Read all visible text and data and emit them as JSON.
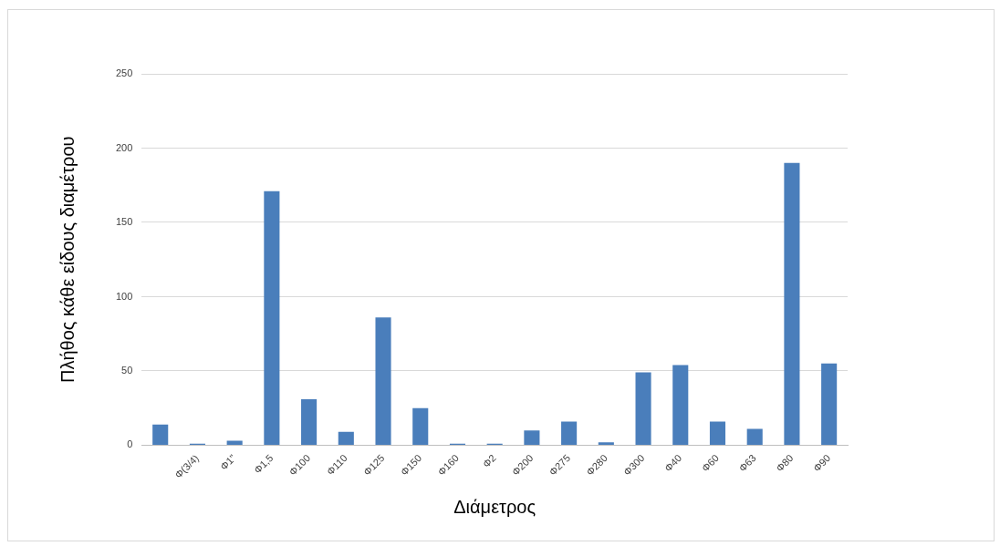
{
  "chart_data": {
    "type": "bar",
    "xlabel": "Διάμετρος",
    "ylabel": "Πλήθος κάθε είδους διαμέτρου",
    "categories": [
      null,
      "Φ(3/4)",
      "Φ1\"",
      "Φ1,5",
      "Φ100",
      "Φ110",
      "Φ125",
      "Φ150",
      "Φ160",
      "Φ2",
      "Φ200",
      "Φ275",
      "Φ280",
      "Φ300",
      "Φ40",
      "Φ60",
      "Φ63",
      "Φ80",
      "Φ90"
    ],
    "values": [
      14,
      1,
      3,
      171,
      31,
      9,
      86,
      25,
      1,
      1,
      10,
      16,
      2,
      49,
      54,
      16,
      11,
      190,
      55
    ],
    "color": "#4a7ebb",
    "ylim": [
      0,
      250
    ],
    "yticks": [
      0,
      50,
      100,
      150,
      200,
      250
    ],
    "grid": "y"
  }
}
